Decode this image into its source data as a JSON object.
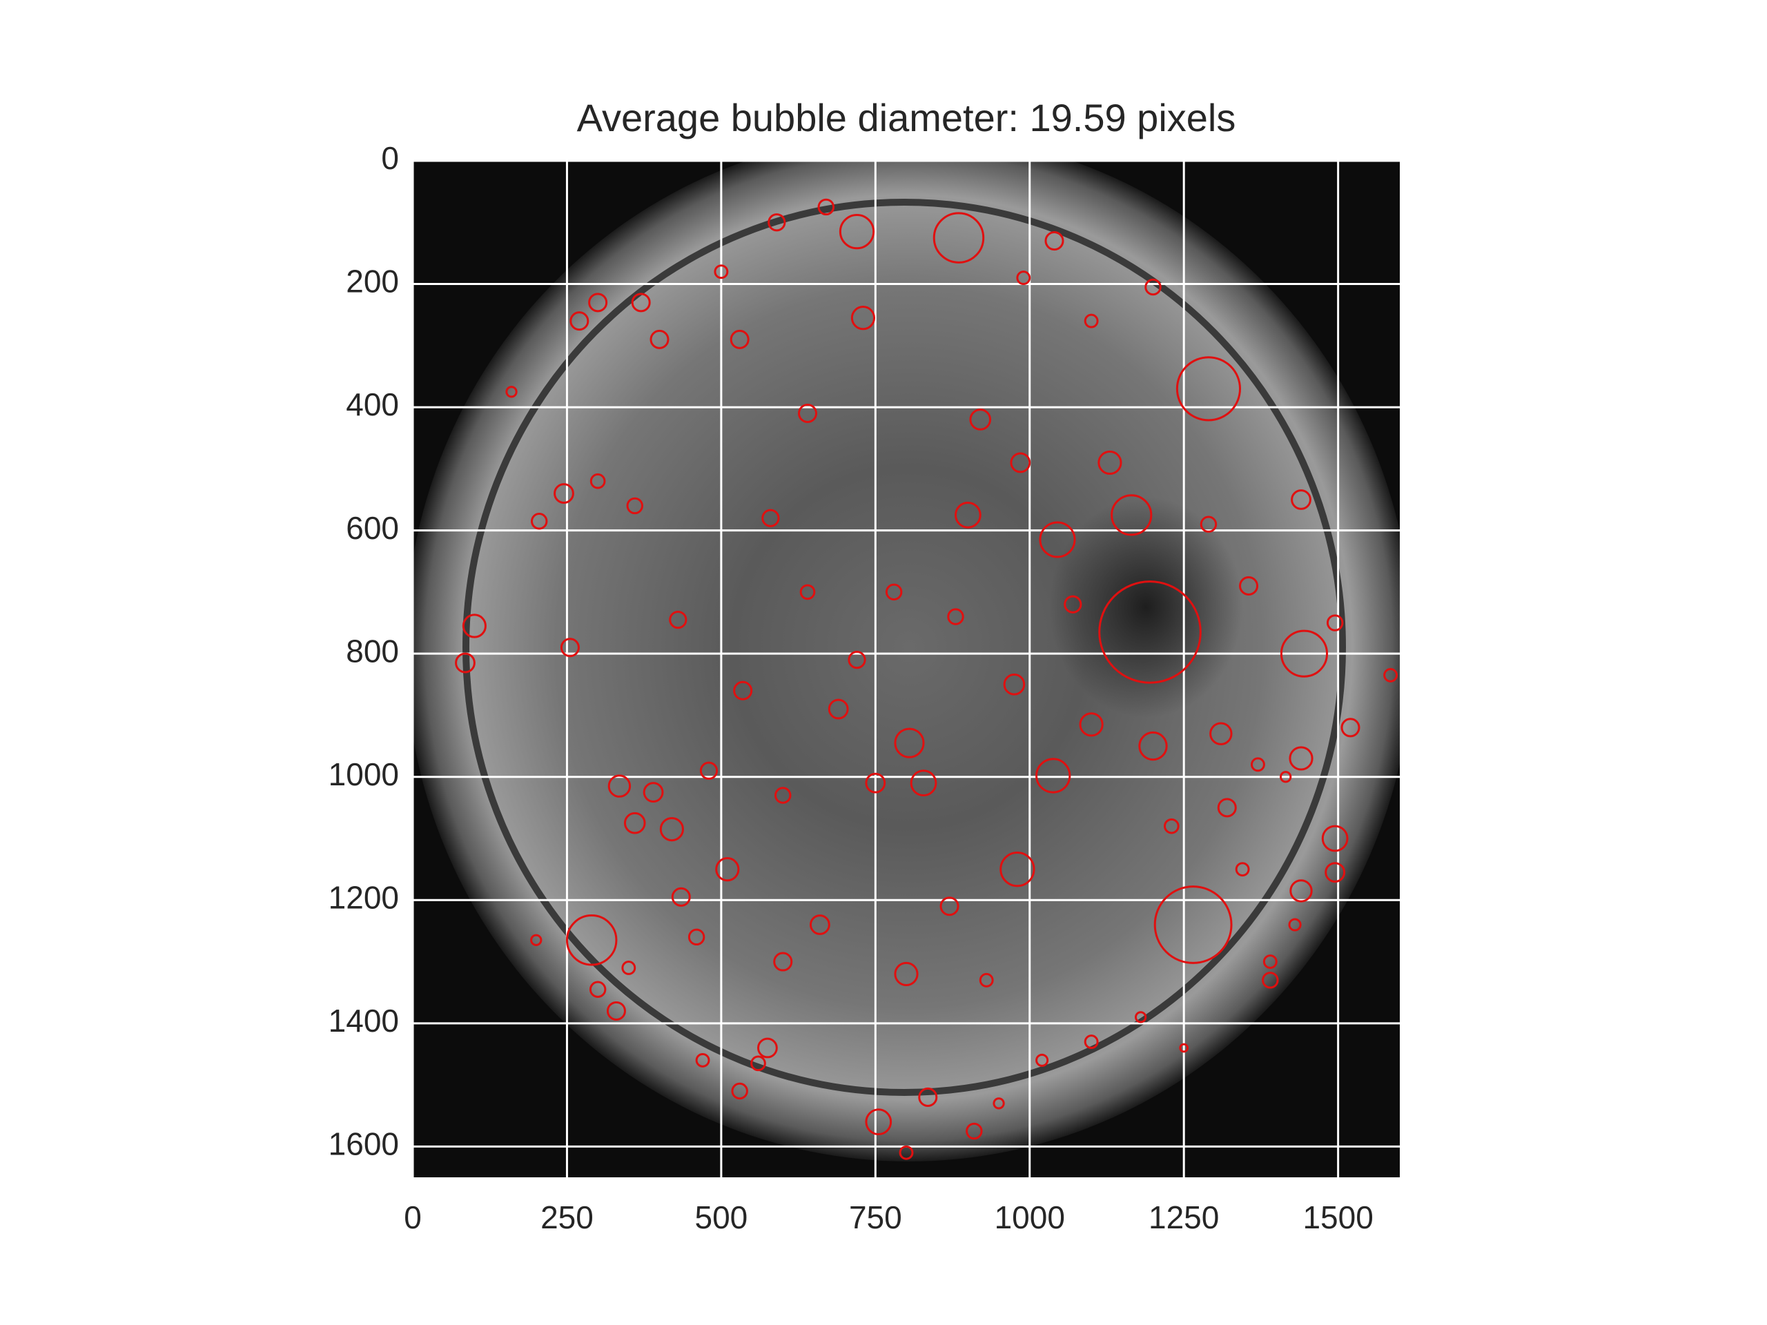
{
  "chart_data": {
    "type": "scatter",
    "title": "Average bubble diameter: 19.59 pixels",
    "color": "#e01010",
    "grid": true,
    "grid_color": "#ffffff",
    "xlim": [
      0,
      1600
    ],
    "ylim": [
      1650,
      0
    ],
    "xticks": [
      0,
      250,
      500,
      750,
      1000,
      1250,
      1500
    ],
    "yticks": [
      0,
      200,
      400,
      600,
      800,
      1000,
      1200,
      1400,
      1600
    ],
    "x": [
      1195,
      1290,
      1265,
      885,
      1445,
      290,
      1038,
      980,
      1165,
      1045,
      805,
      828,
      720,
      755,
      1495,
      1440,
      1440,
      1440,
      1200,
      100,
      85,
      420,
      335,
      360,
      390,
      245,
      205,
      255,
      1130,
      920,
      900,
      730,
      510,
      575,
      600,
      800,
      660,
      750,
      690,
      535,
      975,
      1100,
      985,
      1310,
      1355,
      1495,
      1520,
      1585,
      1495,
      1390,
      1390,
      530,
      470,
      330,
      300,
      200,
      160,
      560,
      835,
      910,
      800,
      1430,
      950,
      1020,
      1100,
      1180,
      1250,
      1200,
      1290,
      1345,
      1370,
      1415,
      1100,
      1040,
      990,
      500,
      590,
      670,
      435,
      460,
      350,
      360,
      300,
      300,
      370,
      270,
      400,
      530,
      640,
      580,
      430,
      720,
      870,
      930,
      780,
      640,
      480,
      600,
      880,
      1070,
      1230,
      1320
    ],
    "values": [
      765,
      370,
      1240,
      125,
      800,
      1265,
      998,
      1150,
      575,
      615,
      945,
      1010,
      115,
      1560,
      1100,
      1185,
      970,
      550,
      950,
      755,
      815,
      1085,
      1015,
      1075,
      1025,
      540,
      585,
      790,
      490,
      420,
      575,
      255,
      1150,
      1440,
      1300,
      1320,
      1240,
      1010,
      890,
      860,
      850,
      915,
      490,
      930,
      690,
      750,
      920,
      835,
      1155,
      1330,
      1300,
      1510,
      1460,
      1380,
      1345,
      1265,
      375,
      1465,
      1520,
      1575,
      1610,
      1240,
      1530,
      1460,
      1430,
      1390,
      1440,
      205,
      590,
      1150,
      980,
      1000,
      260,
      130,
      190,
      180,
      100,
      75,
      1195,
      1260,
      1310,
      560,
      520,
      230,
      230,
      260,
      290,
      290,
      410,
      580,
      745,
      810,
      1210,
      1330,
      700,
      700,
      990,
      1030,
      740,
      720,
      1080,
      1050
    ],
    "sizes": [
      82,
      51,
      62,
      40,
      37,
      40,
      27,
      27,
      32,
      28,
      23,
      20,
      27,
      20,
      20,
      17,
      18,
      15,
      22,
      18,
      15,
      18,
      17,
      16,
      15,
      15,
      12,
      14,
      18,
      16,
      20,
      18,
      18,
      15,
      14,
      18,
      15,
      15,
      15,
      14,
      16,
      18,
      15,
      17,
      14,
      12,
      14,
      10,
      15,
      12,
      10,
      12,
      10,
      14,
      12,
      8,
      8,
      11,
      14,
      12,
      10,
      9,
      8,
      9,
      10,
      8,
      6,
      12,
      12,
      10,
      10,
      8,
      10,
      14,
      10,
      10,
      13,
      12,
      14,
      12,
      10,
      12,
      11,
      14,
      14,
      14,
      14,
      14,
      14,
      13,
      13,
      13,
      14,
      10,
      12,
      11,
      13,
      12,
      12,
      13,
      11,
      14
    ]
  }
}
